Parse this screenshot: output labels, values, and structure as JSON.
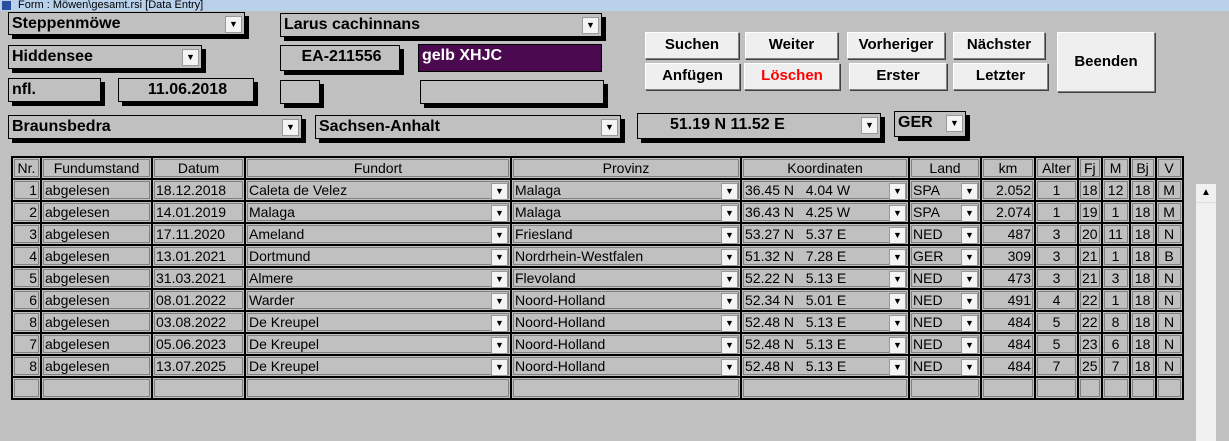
{
  "window": {
    "title": "Form : Möwen\\gesamt.rsi [Data Entry]"
  },
  "form": {
    "species_de": "Steppenmöwe",
    "species_lat": "Larus cachinnans",
    "station": "Hiddensee",
    "ring": "EA-211556",
    "color_ring": "gelb  XHJC",
    "color_ring_bg": "#4b0a4f",
    "age": "nfl.",
    "ring_date": "11.06.2018",
    "extra1": "",
    "extra2": "",
    "place": "Braunsbedra",
    "province": "Sachsen-Anhalt",
    "coords": "51.19 N  11.52 E",
    "country": "GER"
  },
  "buttons": {
    "search": "Suchen",
    "next_search": "Weiter",
    "previous": "Vorheriger",
    "next": "Nächster",
    "quit": "Beenden",
    "append": "Anfügen",
    "delete": "Löschen",
    "first": "Erster",
    "last": "Letzter",
    "delete_color": "#ff0000"
  },
  "table": {
    "headers": [
      "Nr.",
      "Fundumstand",
      "Datum",
      "Fundort",
      "Provinz",
      "Koordinaten",
      "Land",
      "km",
      "Alter",
      "Fj",
      "M",
      "Bj",
      "V"
    ],
    "rows": [
      [
        "1",
        "abgelesen",
        "18.12.2018",
        "Caleta de Velez",
        "Malaga",
        "36.45 N   4.04 W",
        "SPA",
        "2.052",
        "1",
        "18",
        "12",
        "18",
        "M"
      ],
      [
        "2",
        "abgelesen",
        "14.01.2019",
        "Malaga",
        "Malaga",
        "36.43 N   4.25 W",
        "SPA",
        "2.074",
        "1",
        "19",
        "1",
        "18",
        "M"
      ],
      [
        "3",
        "abgelesen",
        "17.11.2020",
        "Ameland",
        "Friesland",
        "53.27 N   5.37 E",
        "NED",
        "487",
        "3",
        "20",
        "11",
        "18",
        "N"
      ],
      [
        "4",
        "abgelesen",
        "13.01.2021",
        "Dortmund",
        "Nordrhein-Westfalen",
        "51.32 N   7.28 E",
        "GER",
        "309",
        "3",
        "21",
        "1",
        "18",
        "B"
      ],
      [
        "5",
        "abgelesen",
        "31.03.2021",
        "Almere",
        "Flevoland",
        "52.22 N   5.13 E",
        "NED",
        "473",
        "3",
        "21",
        "3",
        "18",
        "N"
      ],
      [
        "6",
        "abgelesen",
        "08.01.2022",
        "Warder",
        "Noord-Holland",
        "52.34 N   5.01 E",
        "NED",
        "491",
        "4",
        "22",
        "1",
        "18",
        "N"
      ],
      [
        "8",
        "abgelesen",
        "03.08.2022",
        "De Kreupel",
        "Noord-Holland",
        "52.48 N   5.13 E",
        "NED",
        "484",
        "5",
        "22",
        "8",
        "18",
        "N"
      ],
      [
        "7",
        "abgelesen",
        "05.06.2023",
        "De Kreupel",
        "Noord-Holland",
        "52.48 N   5.13 E",
        "NED",
        "484",
        "5",
        "23",
        "6",
        "18",
        "N"
      ],
      [
        "8",
        "abgelesen",
        "13.07.2025",
        "De Kreupel",
        "Noord-Holland",
        "52.48 N   5.13 E",
        "NED",
        "484",
        "7",
        "25",
        "7",
        "18",
        "N"
      ]
    ]
  }
}
